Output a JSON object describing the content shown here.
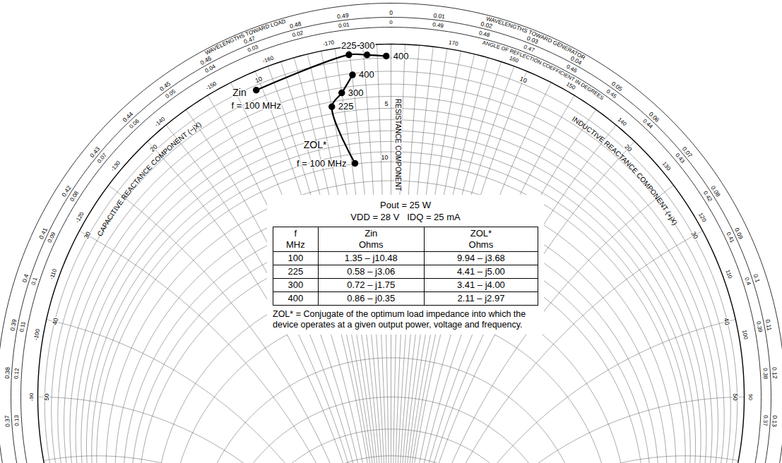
{
  "chart_data": {
    "type": "smith",
    "z0": 50,
    "series": [
      {
        "name": "Zin",
        "color": "#000000",
        "marker": "circle",
        "line_style": "solid",
        "frequencies": [
          100,
          225,
          300,
          400
        ],
        "resistance": [
          1.35,
          0.58,
          0.72,
          0.86
        ],
        "reactance": [
          -10.48,
          -3.06,
          -1.75,
          -0.35
        ],
        "value_labels": [
          "1.35 – j10.48",
          "0.58 – j3.06",
          "0.72 – j1.75",
          "0.86 – j0.35"
        ],
        "point_labels": [
          "f = 100 MHz",
          "225",
          "300",
          "400"
        ]
      },
      {
        "name": "ZOL*",
        "color": "#000000",
        "marker": "circle",
        "line_style": "solid",
        "frequencies": [
          100,
          225,
          300,
          400
        ],
        "resistance": [
          9.94,
          4.41,
          3.41,
          2.11
        ],
        "reactance": [
          -3.68,
          -5.0,
          -4.0,
          -2.97
        ],
        "value_labels": [
          "9.94 – j3.68",
          "4.41 – j5.00",
          "3.41 – j4.00",
          "2.11 – j2.97"
        ],
        "point_labels": [
          "f = 100 MHz",
          "225",
          "300",
          "400"
        ]
      }
    ],
    "operating_conditions": [
      "Pout = 25 W",
      "VDD = 28 V   IDQ = 25 mA"
    ],
    "table_columns": [
      "f MHz",
      "Zin Ohms",
      "ZOL* Ohms"
    ],
    "note": "ZOL* = Conjugate of the optimum load impedance into which the device operates at a given output power, voltage and frequency.",
    "axis_labels": {
      "resistance": "RESISTANCE COMPONENT",
      "inductive": "INDUCTIVE REACTANCE COMPONENT (+jX)",
      "capacitive": "CAPACITIVE REACTANCE COMPONENT (−jX)"
    },
    "scale_titles": {
      "generator": "WAVELENGTHS TOWARD GENERATOR",
      "load": "WAVELENGTHS TOWARD LOAD",
      "angle": "ANGLE OF REFLECTION COEFFICIENT IN DEGREES"
    },
    "resistance_grid": [
      1,
      2,
      3,
      4,
      5,
      6,
      7,
      8,
      9,
      10,
      12,
      14,
      16,
      18,
      20,
      25,
      30,
      40,
      50,
      60,
      70,
      80,
      100,
      150,
      200,
      300,
      500
    ],
    "reactance_grid": [
      1,
      2,
      3,
      4,
      5,
      6,
      7,
      8,
      9,
      10,
      12,
      14,
      16,
      18,
      20,
      25,
      30,
      40,
      50,
      60,
      70,
      80,
      100,
      150,
      200,
      300,
      500
    ],
    "resistance_labels": [
      5,
      10
    ],
    "inductive_labels": [
      10,
      20,
      30,
      40,
      50
    ],
    "capacitive_labels": [
      10,
      20,
      30,
      40,
      50
    ],
    "wavelengths_toward_generator": [
      0,
      0.01,
      0.02,
      0.03,
      0.04,
      0.05,
      0.06,
      0.07,
      0.08,
      0.09,
      0.1,
      0.11,
      0.12,
      0.13,
      0.37,
      0.38,
      0.39,
      0.4,
      0.41,
      0.42,
      0.43,
      0.44,
      0.45,
      0.46,
      0.47,
      0.48,
      0.49
    ],
    "wavelengths_toward_load": [
      0,
      0.01,
      0.02,
      0.03,
      0.04,
      0.05,
      0.06,
      0.07,
      0.08,
      0.09,
      0.1,
      0.11,
      0.12,
      0.13,
      0.37,
      0.38,
      0.39,
      0.4,
      0.41,
      0.42,
      0.43,
      0.44,
      0.45,
      0.46,
      0.47,
      0.48,
      0.49
    ],
    "reflection_angle_ticks": [
      90,
      100,
      110,
      120,
      130,
      140,
      150,
      160,
      170,
      -170,
      -160,
      -150,
      -140,
      -130,
      -120,
      -110,
      -100,
      -90
    ]
  }
}
